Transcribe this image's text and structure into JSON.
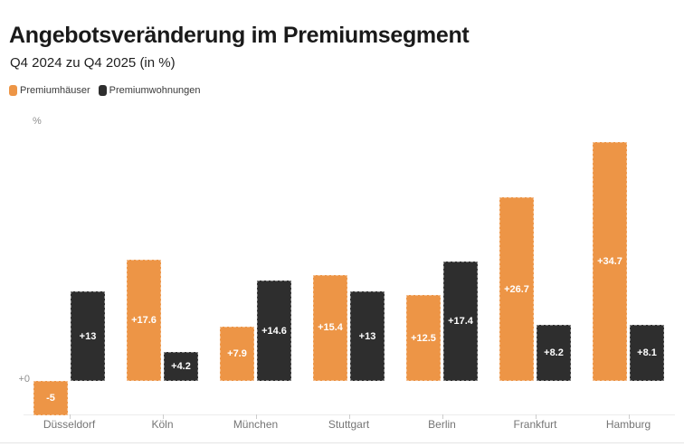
{
  "chart_data": {
    "type": "bar",
    "title": "Angebotsveränderung im Premiumsegment",
    "subtitle": "Q4 2024 zu Q4 2025 (in %)",
    "unit_label": "%",
    "zero_label": "+0",
    "categories": [
      "Düsseldorf",
      "Köln",
      "München",
      "Stuttgart",
      "Berlin",
      "Frankfurt",
      "Hamburg"
    ],
    "series": [
      {
        "name": "Premiumhäuser",
        "color": "#ED9546",
        "values": [
          -5,
          17.6,
          7.9,
          15.4,
          12.5,
          26.7,
          34.7
        ],
        "value_labels": [
          "-5",
          "+17.6",
          "+7.9",
          "+15.4",
          "+12.5",
          "+26.7",
          "+34.7"
        ]
      },
      {
        "name": "Premiumwohnungen",
        "color": "#2E2E2E",
        "values": [
          13,
          4.2,
          14.6,
          13,
          17.4,
          8.2,
          8.1
        ],
        "value_labels": [
          "+13",
          "+4.2",
          "+14.6",
          "+13",
          "+17.4",
          "+8.2",
          "+8.1"
        ]
      }
    ],
    "ylim": [
      -5,
      35
    ],
    "grid": false,
    "legend_position": "top-left",
    "bar_label_color": "#ffffff",
    "axis_text_color": "#8f8f8f",
    "category_text_color": "#757575"
  }
}
